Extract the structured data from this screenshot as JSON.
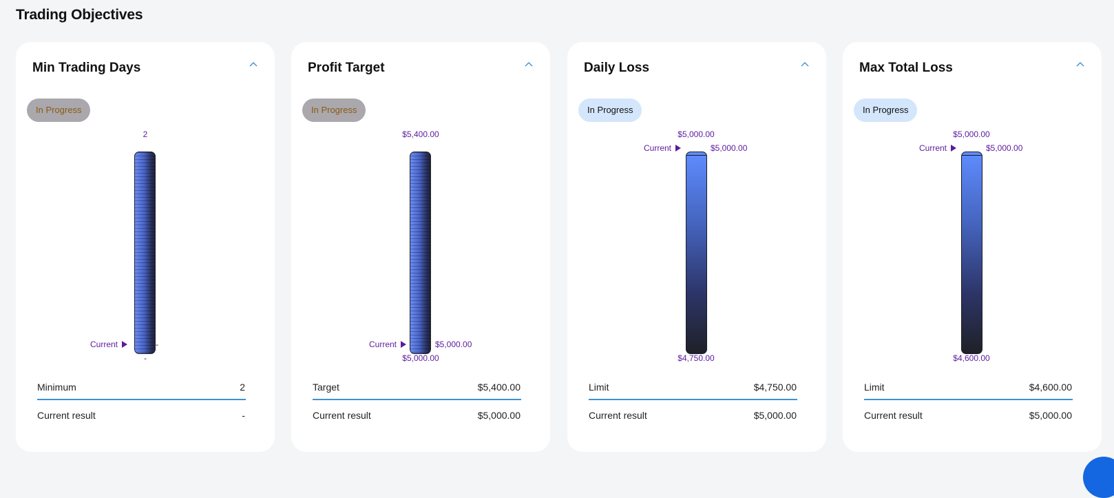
{
  "page": {
    "title": "Trading Objectives"
  },
  "cards": [
    {
      "title": "Min Trading Days",
      "status": "In Progress",
      "top_value": "2",
      "current_label": "Current",
      "current_value": "-",
      "bottom_value": "-",
      "row1_label": "Minimum",
      "row1_value": "2",
      "row2_label": "Current result",
      "row2_value": "-"
    },
    {
      "title": "Profit Target",
      "status": "In Progress",
      "top_value": "$5,400.00",
      "current_label": "Current",
      "current_value": "$5,000.00",
      "bottom_value": "$5,000.00",
      "row1_label": "Target",
      "row1_value": "$5,400.00",
      "row2_label": "Current result",
      "row2_value": "$5,000.00"
    },
    {
      "title": "Daily Loss",
      "status": "In Progress",
      "top_value": "$5,000.00",
      "current_label": "Current",
      "current_value": "$5,000.00",
      "bottom_value": "$4,750.00",
      "row1_label": "Limit",
      "row1_value": "$4,750.00",
      "row2_label": "Current result",
      "row2_value": "$5,000.00"
    },
    {
      "title": "Max Total Loss",
      "status": "In Progress",
      "top_value": "$5,000.00",
      "current_label": "Current",
      "current_value": "$5,000.00",
      "bottom_value": "$4,600.00",
      "row1_label": "Limit",
      "row1_value": "$4,600.00",
      "row2_label": "Current result",
      "row2_value": "$5,000.00"
    }
  ],
  "colors": {
    "accent": "#3a92d8",
    "marker": "#5c1a9c",
    "badge_gray": "#aaa8ad",
    "badge_blue": "#d3e6fb",
    "fab": "#1467e0"
  }
}
